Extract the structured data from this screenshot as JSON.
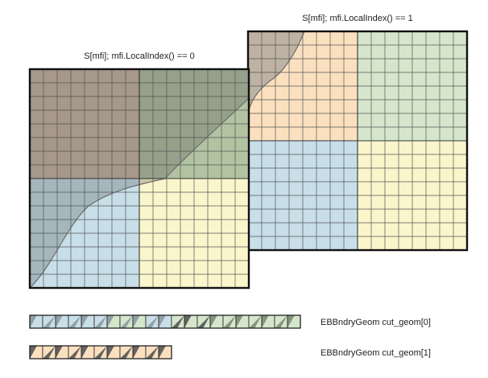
{
  "panels": [
    {
      "label": "S[mfi]; mfi.LocalIndex() == 0",
      "cells": 16,
      "quadrants": [
        "#c9b6a3",
        "#b2c3a2",
        "#c8dfe9",
        "#fbf5cc"
      ],
      "covered_tints": [
        "#9f9c92",
        "#8b9a85",
        "#a4b1b5",
        "#d7d1b2"
      ]
    },
    {
      "label": "S[mfi]; mfi.LocalIndex() == 1",
      "cells": 16,
      "quadrants": [
        "#fbe0c0",
        "#d5e6cc",
        "#c8dfe9",
        "#fbf5cc"
      ],
      "covered_tints": [
        "#bcb2aa",
        "#a4ad9f",
        "#a4b1b5",
        "#d7d1b2"
      ]
    }
  ],
  "strips": [
    {
      "label": "EBBndryGeom cut_geom[0]",
      "cells": [
        "#c8dfe9",
        "#c8dfe9",
        "#c8dfe9",
        "#c8dfe9",
        "#c8dfe9",
        "#c8dfe9",
        "#d5e6cc",
        "#d5e6cc",
        "#d5e6cc",
        "#c8dfe9",
        "#c8dfe9",
        "#d5e6cc",
        "#d5e6cc",
        "#d5e6cc",
        "#d5e6cc",
        "#d5e6cc",
        "#d5e6cc",
        "#d5e6cc",
        "#d5e6cc",
        "#d5e6cc",
        "#d5e6cc"
      ],
      "shades": [
        "#8a9aa0",
        "#8a9aa0",
        "#8a9aa0",
        "#8a9aa0",
        "#8a9aa0",
        "#8a9aa0",
        "#8a9aa0",
        "#8a9aa0",
        "#8a9aa0",
        "#8a9aa0",
        "#8a9aa0",
        "#555555",
        "#555555",
        "#555555",
        "#7b8b75",
        "#7b8b75",
        "#7b8b75",
        "#7b8b75",
        "#7b8b75",
        "#7b8b75",
        "#7b8b75"
      ]
    },
    {
      "label": "EBBndryGeom cut_geom[1]",
      "cells": [
        "#fbe0c0",
        "#fbe0c0",
        "#fbe0c0",
        "#fbe0c0",
        "#fbe0c0",
        "#fbe0c0",
        "#fbe0c0",
        "#fbe0c0",
        "#fbe0c0",
        "#fbe0c0",
        "#fbe0c0"
      ],
      "shades": [
        "#555555",
        "#555555",
        "#555555",
        "#555555",
        "#555555",
        "#555555",
        "#555555",
        "#555555",
        "#555555",
        "#555555",
        "#555555"
      ]
    }
  ]
}
